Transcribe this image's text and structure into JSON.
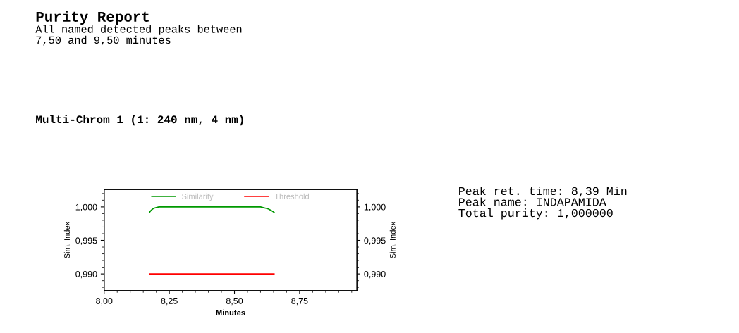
{
  "chart_data": {
    "type": "line",
    "title": "Purity Report",
    "subtitle": "All named detected peaks between\n7,50 and 9,50 minutes",
    "xlabel": "Minutes",
    "ylabel": "Sim. Index",
    "y2label": "Sim. Index",
    "annotations": [
      "Multi-Chrom 1 (1: 240 nm, 4 nm)",
      "Peak ret. time: 8,39 Min\nPeak name: INDAPAMIDA\nTotal purity: 1,000000"
    ],
    "series": [
      {
        "name": "Similarity",
        "color": "#009900",
        "x": [
          8.174,
          8.18,
          8.19,
          8.2,
          8.21,
          8.22,
          8.3,
          8.4,
          8.5,
          8.6,
          8.61,
          8.62,
          8.63,
          8.64,
          8.652
        ],
        "values": [
          0.9992,
          0.9995,
          0.9998,
          0.9999,
          1.0,
          1.0,
          1.0,
          1.0,
          1.0,
          1.0,
          0.9999,
          0.9998,
          0.9997,
          0.9995,
          0.9992
        ]
      },
      {
        "name": "Threshold",
        "color": "#ff0000",
        "x": [
          8.174,
          8.652
        ],
        "values": [
          0.99,
          0.99
        ]
      }
    ],
    "xlim": [
      8.0,
      8.97
    ],
    "ylim": [
      0.9875,
      1.0026
    ],
    "y2lim": [
      0.9875,
      1.0026
    ],
    "xticks": [
      {
        "value": 8.0,
        "label": "8,00"
      },
      {
        "value": 8.25,
        "label": "8,25"
      },
      {
        "value": 8.5,
        "label": "8,50"
      },
      {
        "value": 8.75,
        "label": "8,75"
      }
    ],
    "yticks": [
      {
        "value": 0.99,
        "label": "0,990"
      },
      {
        "value": 0.995,
        "label": "0,995"
      },
      {
        "value": 1.0,
        "label": "1,000"
      }
    ],
    "y2ticks": [
      {
        "value": 0.99,
        "label": "0,990"
      },
      {
        "value": 0.995,
        "label": "0,995"
      },
      {
        "value": 1.0,
        "label": "1,000"
      }
    ],
    "legend": "top",
    "grid": false,
    "marker": "none",
    "line_style": "solid"
  }
}
